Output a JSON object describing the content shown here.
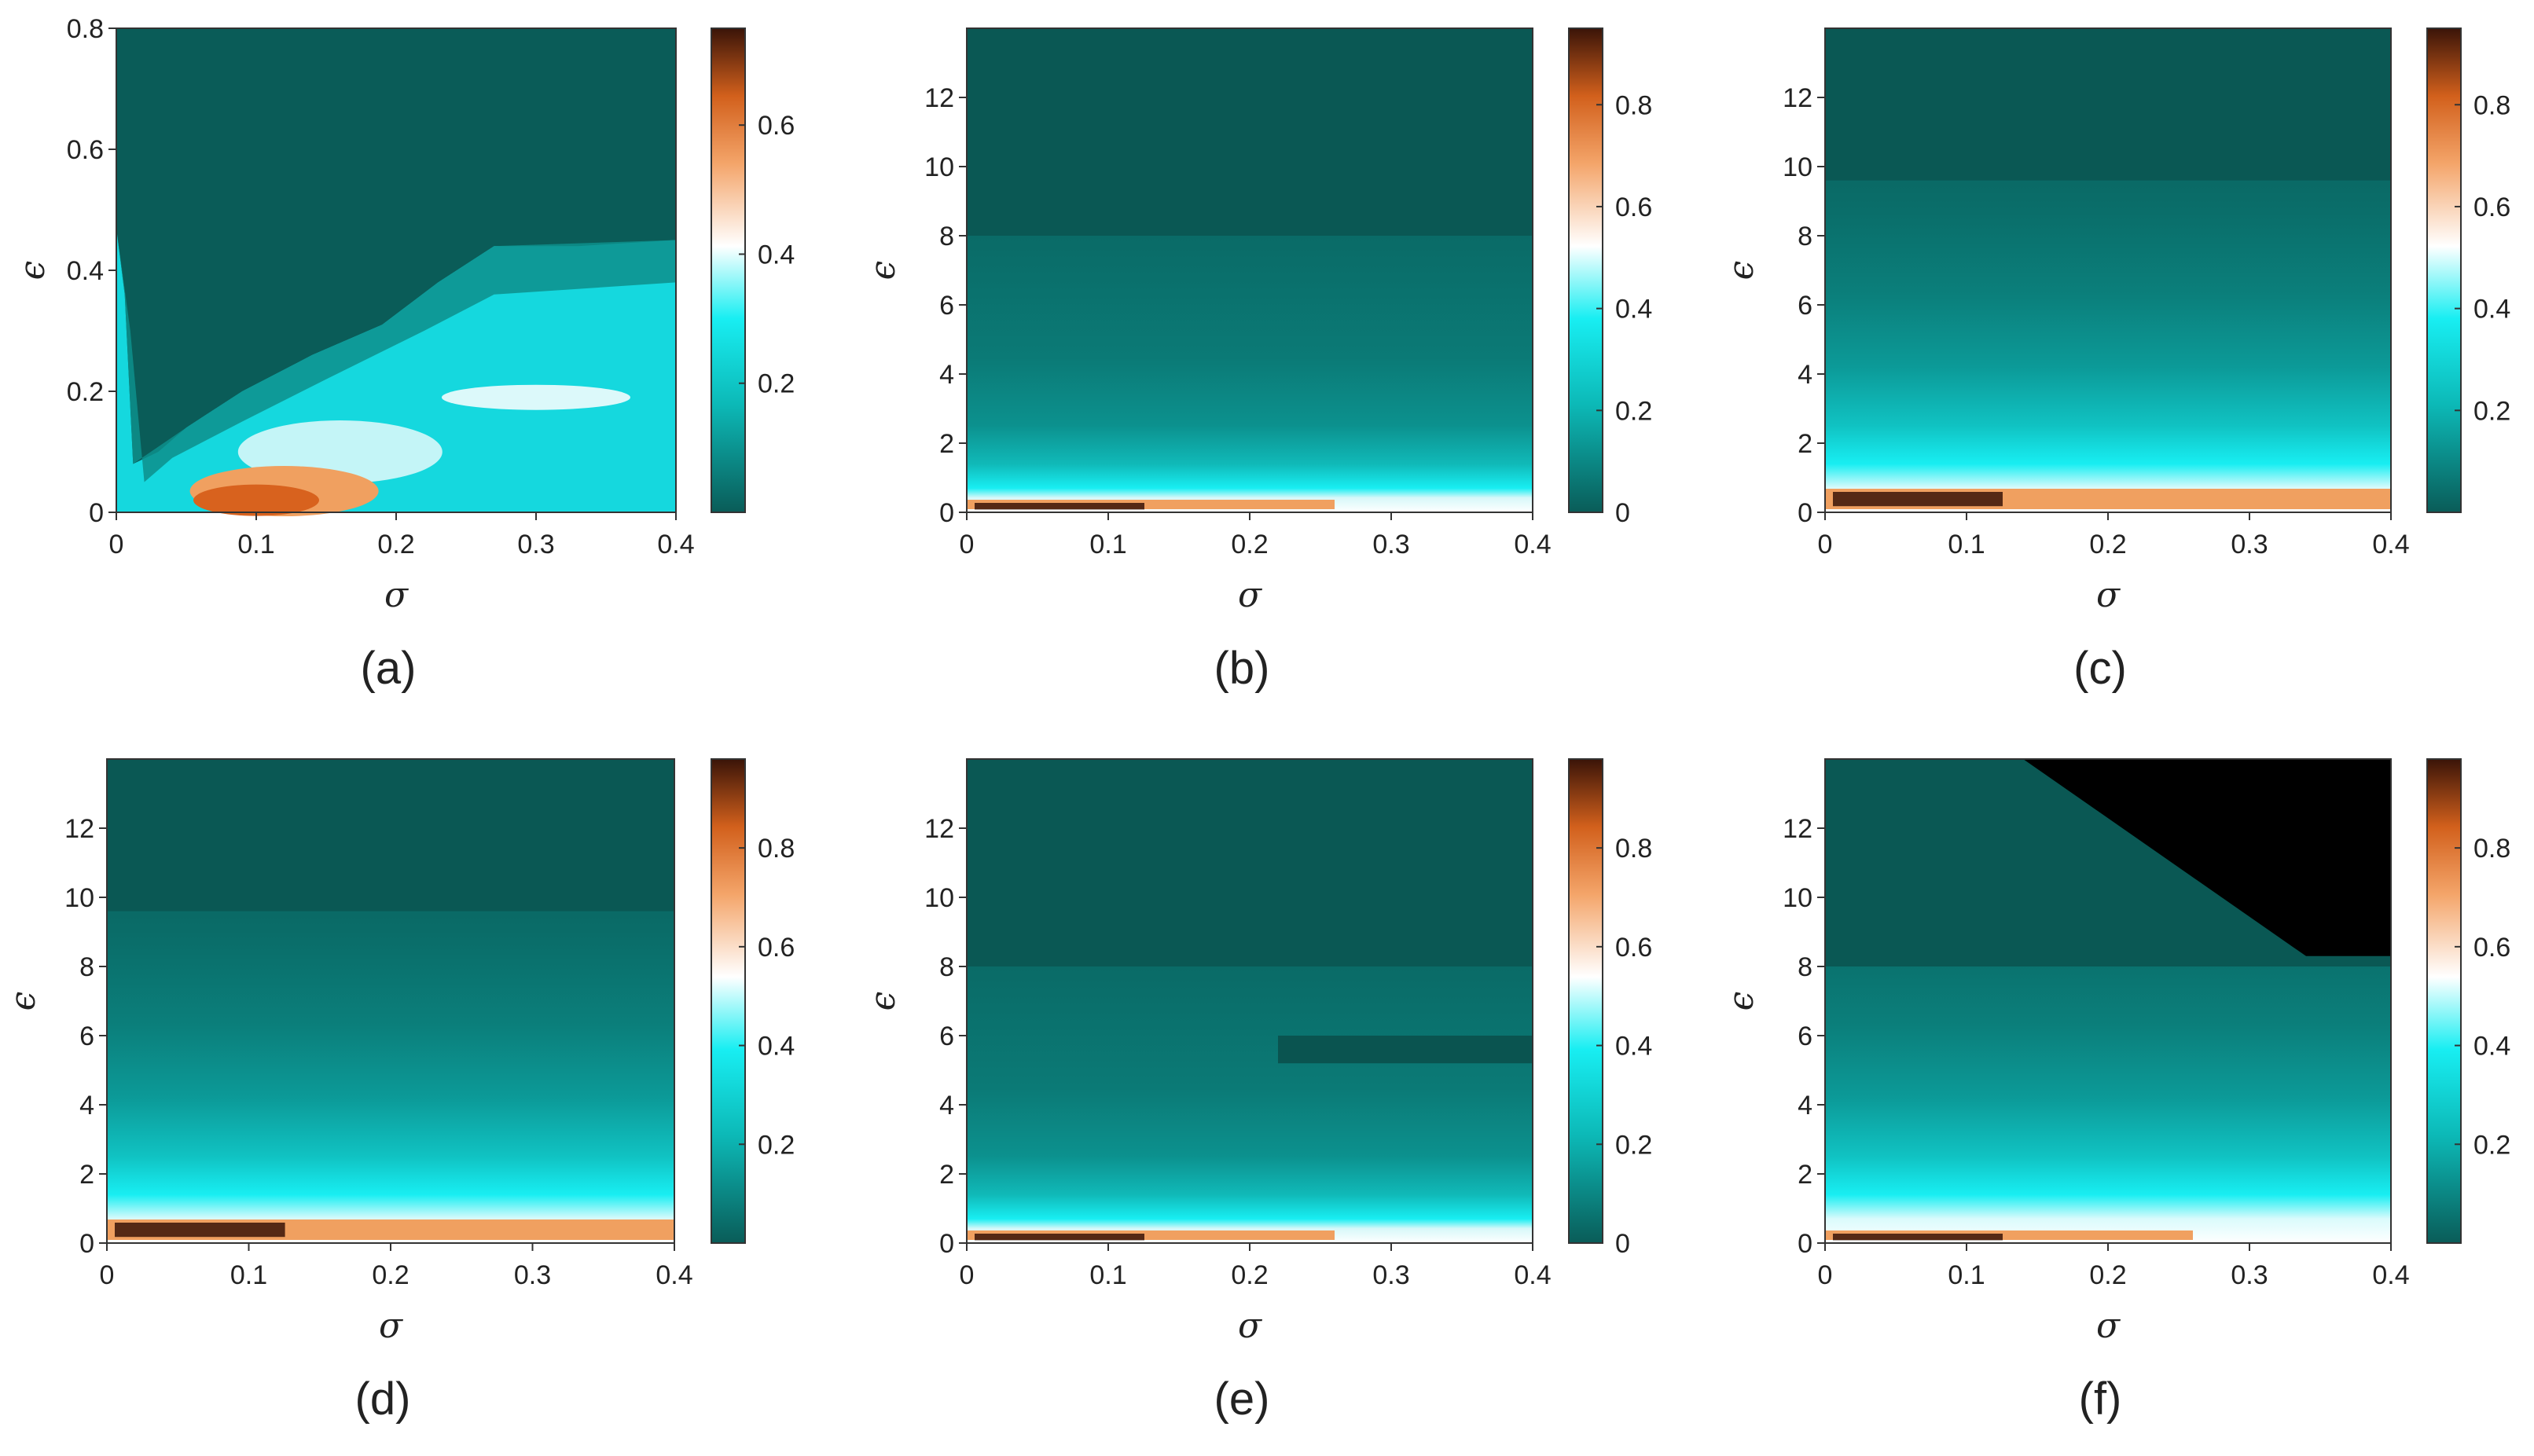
{
  "figure": {
    "colors": {
      "dark": "#0a5c58",
      "teal": "#0b8f8a",
      "cyan": "#15e0e6",
      "white": "#ffffff",
      "orange": "#e8752e",
      "brown": "#3a1408",
      "blocked": "#000000"
    }
  },
  "chart_data": [
    {
      "type": "heatmap",
      "panel_label": "(a)",
      "xlabel": "σ",
      "ylabel": "ϵ",
      "xlim": [
        0,
        0.4
      ],
      "ylim": [
        0,
        0.8
      ],
      "xticks": [
        "0",
        "0.1",
        "0.2",
        "0.3",
        "0.4"
      ],
      "yticks": [
        "0",
        "0.2",
        "0.4",
        "0.6",
        "0.8"
      ],
      "yticks_values": [
        0,
        0.2,
        0.4,
        0.6,
        0.8
      ],
      "colorbar": {
        "min": 0,
        "max": 0.75,
        "ticks": [
          "0.2",
          "0.4",
          "0.6"
        ],
        "ticks_values": [
          0.2,
          0.4,
          0.6
        ]
      },
      "description_values": {
        "upper_region_mean": 0.05,
        "cyan_band_mean": 0.25,
        "orange_spot_peak": 0.6
      }
    },
    {
      "type": "heatmap",
      "panel_label": "(b)",
      "xlabel": "σ",
      "ylabel": "ϵ",
      "xlim": [
        0,
        0.4
      ],
      "ylim": [
        0,
        14
      ],
      "xticks": [
        "0",
        "0.1",
        "0.2",
        "0.3",
        "0.4"
      ],
      "yticks": [
        "0",
        "2",
        "4",
        "6",
        "8",
        "10",
        "12"
      ],
      "yticks_values": [
        0,
        2,
        4,
        6,
        8,
        10,
        12
      ],
      "colorbar": {
        "min": 0,
        "max": 0.95,
        "ticks": [
          "0",
          "0.2",
          "0.4",
          "0.6",
          "0.8"
        ],
        "ticks_values": [
          0,
          0.2,
          0.4,
          0.6,
          0.8
        ]
      },
      "description_values": {
        "bottom_peak": 0.95,
        "bulk_mean": 0.05
      }
    },
    {
      "type": "heatmap",
      "panel_label": "(c)",
      "xlabel": "σ",
      "ylabel": "ϵ",
      "xlim": [
        0,
        0.4
      ],
      "ylim": [
        0,
        14
      ],
      "xticks": [
        "0",
        "0.1",
        "0.2",
        "0.3",
        "0.4"
      ],
      "yticks": [
        "0",
        "2",
        "4",
        "6",
        "8",
        "10",
        "12"
      ],
      "yticks_values": [
        0,
        2,
        4,
        6,
        8,
        10,
        12
      ],
      "colorbar": {
        "min": 0,
        "max": 0.95,
        "ticks": [
          "0.2",
          "0.4",
          "0.6",
          "0.8"
        ],
        "ticks_values": [
          0.2,
          0.4,
          0.6,
          0.8
        ]
      },
      "description_values": {
        "bottom_peak": 0.95,
        "bulk_mean": 0.05
      }
    },
    {
      "type": "heatmap",
      "panel_label": "(d)",
      "xlabel": "σ",
      "ylabel": "ϵ",
      "xlim": [
        0,
        0.4
      ],
      "ylim": [
        0,
        14
      ],
      "xticks": [
        "0",
        "0.1",
        "0.2",
        "0.3",
        "0.4"
      ],
      "yticks": [
        "0",
        "2",
        "4",
        "6",
        "8",
        "10",
        "12"
      ],
      "yticks_values": [
        0,
        2,
        4,
        6,
        8,
        10,
        12
      ],
      "colorbar": {
        "min": 0,
        "max": 0.98,
        "ticks": [
          "0.2",
          "0.4",
          "0.6",
          "0.8"
        ],
        "ticks_values": [
          0.2,
          0.4,
          0.6,
          0.8
        ]
      },
      "description_values": {
        "bottom_peak": 0.98,
        "bulk_mean": 0.05
      }
    },
    {
      "type": "heatmap",
      "panel_label": "(e)",
      "xlabel": "σ",
      "ylabel": "ϵ",
      "xlim": [
        0,
        0.4
      ],
      "ylim": [
        0,
        14
      ],
      "xticks": [
        "0",
        "0.1",
        "0.2",
        "0.3",
        "0.4"
      ],
      "yticks": [
        "0",
        "2",
        "4",
        "6",
        "8",
        "10",
        "12"
      ],
      "yticks_values": [
        0,
        2,
        4,
        6,
        8,
        10,
        12
      ],
      "colorbar": {
        "min": 0,
        "max": 0.98,
        "ticks": [
          "0",
          "0.2",
          "0.4",
          "0.6",
          "0.8"
        ],
        "ticks_values": [
          0,
          0.2,
          0.4,
          0.6,
          0.8
        ]
      },
      "description_values": {
        "bottom_peak": 0.98,
        "bulk_mean": 0.05
      }
    },
    {
      "type": "heatmap",
      "panel_label": "(f)",
      "xlabel": "σ",
      "ylabel": "ϵ",
      "xlim": [
        0,
        0.4
      ],
      "ylim": [
        0,
        14
      ],
      "xticks": [
        "0",
        "0.1",
        "0.2",
        "0.3",
        "0.4"
      ],
      "yticks": [
        "0",
        "2",
        "4",
        "6",
        "8",
        "10",
        "12"
      ],
      "yticks_values": [
        0,
        2,
        4,
        6,
        8,
        10,
        12
      ],
      "colorbar": {
        "min": 0,
        "max": 0.98,
        "ticks": [
          "0.2",
          "0.4",
          "0.6",
          "0.8"
        ],
        "ticks_values": [
          0.2,
          0.4,
          0.6,
          0.8
        ]
      },
      "description_values": {
        "bottom_peak": 0.98,
        "bulk_mean": 0.05
      },
      "undefined_region": {
        "description": "black (no data) region, upper right",
        "vertices_sigma_eps": [
          [
            0.14,
            14
          ],
          [
            0.4,
            14
          ],
          [
            0.4,
            8.3
          ],
          [
            0.34,
            8.3
          ]
        ]
      }
    }
  ]
}
